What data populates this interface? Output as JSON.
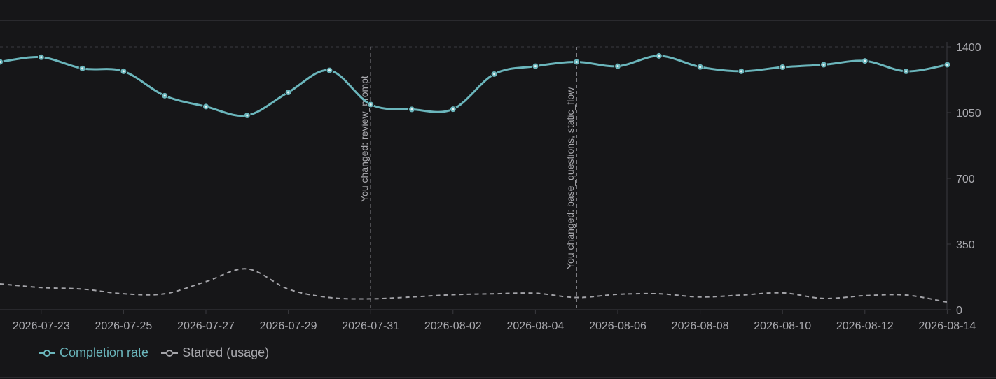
{
  "colors": {
    "background": "#161618",
    "completion": "#6bb6bc",
    "started": "#a3a3a8",
    "grid": "#3a3a3f",
    "axis": "#3a3a3f",
    "text": "#a9a9ae"
  },
  "legend": {
    "completion_label": "Completion rate",
    "started_label": "Started (usage)",
    "completion_icon": "line-circle-icon",
    "started_icon": "line-circle-icon"
  },
  "chart_data": {
    "type": "line",
    "x": [
      "2026-07-22",
      "2026-07-23",
      "2026-07-24",
      "2026-07-25",
      "2026-07-26",
      "2026-07-27",
      "2026-07-28",
      "2026-07-29",
      "2026-07-30",
      "2026-07-31",
      "2026-08-01",
      "2026-08-02",
      "2026-08-03",
      "2026-08-04",
      "2026-08-05",
      "2026-08-06",
      "2026-08-07",
      "2026-08-08",
      "2026-08-09",
      "2026-08-10",
      "2026-08-11",
      "2026-08-12",
      "2026-08-13",
      "2026-08-14"
    ],
    "x_tick_labels": [
      "2026-07-23",
      "2026-07-25",
      "2026-07-27",
      "2026-07-29",
      "2026-07-31",
      "2026-08-02",
      "2026-08-04",
      "2026-08-06",
      "2026-08-08",
      "2026-08-10",
      "2026-08-12",
      "2026-08-14"
    ],
    "y_ticks": [
      0,
      350,
      700,
      1050,
      1400
    ],
    "ylim": [
      0,
      1400
    ],
    "y_axis_side": "right",
    "grid": "top-line-only",
    "legend_position": "bottom-left",
    "series": [
      {
        "name": "Completion rate",
        "style": "solid-with-markers",
        "values": [
          1320,
          1345,
          1285,
          1270,
          1140,
          1082,
          1035,
          1158,
          1275,
          1093,
          1067,
          1068,
          1255,
          1297,
          1320,
          1297,
          1352,
          1293,
          1270,
          1292,
          1305,
          1325,
          1270,
          1305
        ]
      },
      {
        "name": "Started (usage)",
        "style": "dashed",
        "values": [
          138,
          118,
          110,
          85,
          85,
          150,
          218,
          110,
          65,
          58,
          68,
          80,
          85,
          88,
          65,
          82,
          85,
          68,
          78,
          90,
          60,
          75,
          78,
          40
        ]
      }
    ],
    "annotations": [
      {
        "x": "2026-07-31",
        "label": "You changed: review_prompt"
      },
      {
        "x": "2026-08-05",
        "label": "You changed: base_questions, static_flow"
      }
    ]
  }
}
